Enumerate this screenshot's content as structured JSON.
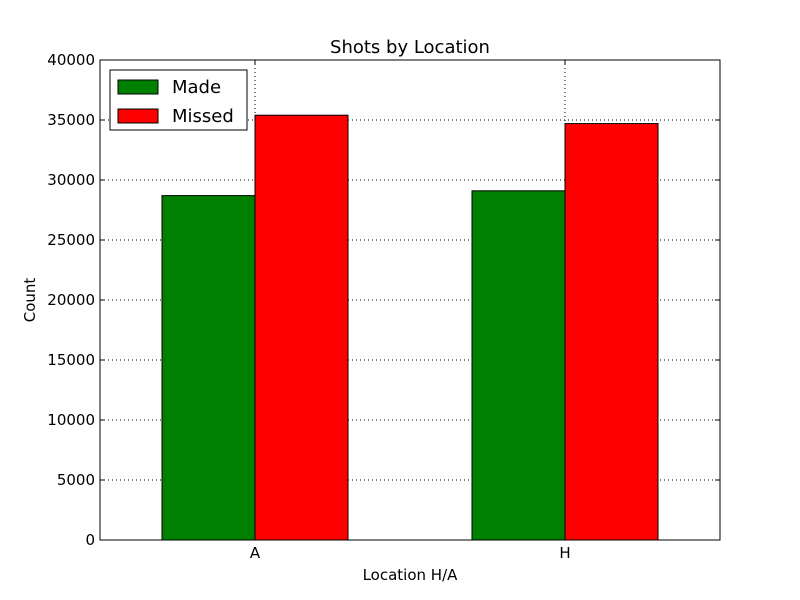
{
  "chart_data": {
    "type": "bar",
    "title": "Shots by Location",
    "xlabel": "Location H/A",
    "ylabel": "Count",
    "categories": [
      "A",
      "H"
    ],
    "series": [
      {
        "name": "Made",
        "values": [
          28700,
          29100
        ],
        "color": "#008000"
      },
      {
        "name": "Missed",
        "values": [
          35400,
          34700
        ],
        "color": "#ff0000"
      }
    ],
    "ylim": [
      0,
      40000
    ],
    "yticks": [
      0,
      5000,
      10000,
      15000,
      20000,
      25000,
      30000,
      35000,
      40000
    ],
    "grid": true,
    "legend_position": "top-left"
  }
}
